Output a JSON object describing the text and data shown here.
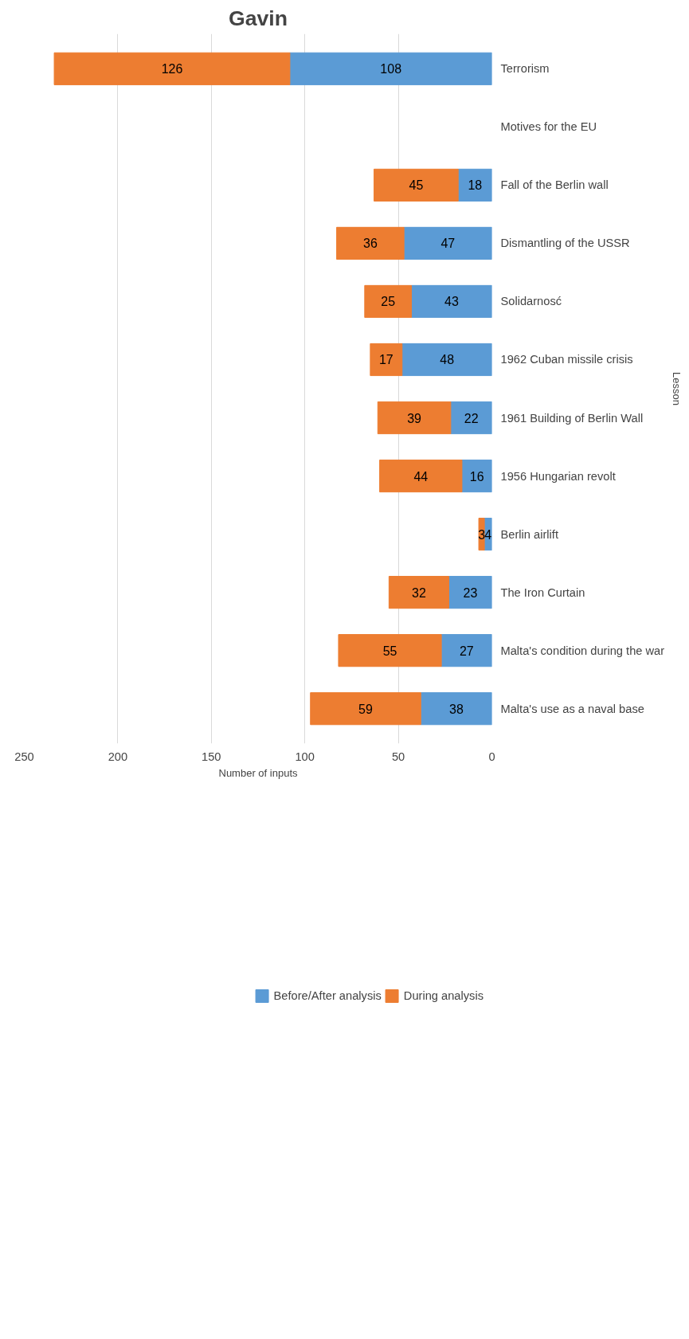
{
  "chart_data": {
    "type": "bar",
    "orientation": "horizontal",
    "stacked": true,
    "title": "Gavin",
    "xlabel": "Number of inputs",
    "ylabel": "Lesson",
    "categories": [
      "Terrorism",
      "Motives for the EU",
      "Fall of the Berlin wall",
      "Dismantling of the USSR",
      "Solidarnosć",
      "1962 Cuban missile crisis",
      "1961 Building of Berlin Wall",
      "1956 Hungarian revolt",
      "Berlin airlift",
      "The Iron Curtain",
      "Malta's condition during the war",
      "Malta's use as a naval base"
    ],
    "series": [
      {
        "name": "Before/After analysis",
        "color": "#5b9bd5",
        "values": [
          108,
          null,
          18,
          47,
          43,
          48,
          22,
          16,
          4,
          23,
          27,
          38
        ]
      },
      {
        "name": "During analysis",
        "color": "#ed7d31",
        "values": [
          126,
          null,
          45,
          36,
          25,
          17,
          39,
          44,
          3,
          32,
          55,
          59
        ]
      }
    ],
    "xlim": [
      250,
      0
    ],
    "xticks": [
      0,
      50,
      100,
      150,
      200,
      250
    ],
    "grid": "x",
    "legend": "bottom",
    "data_labels": true
  }
}
